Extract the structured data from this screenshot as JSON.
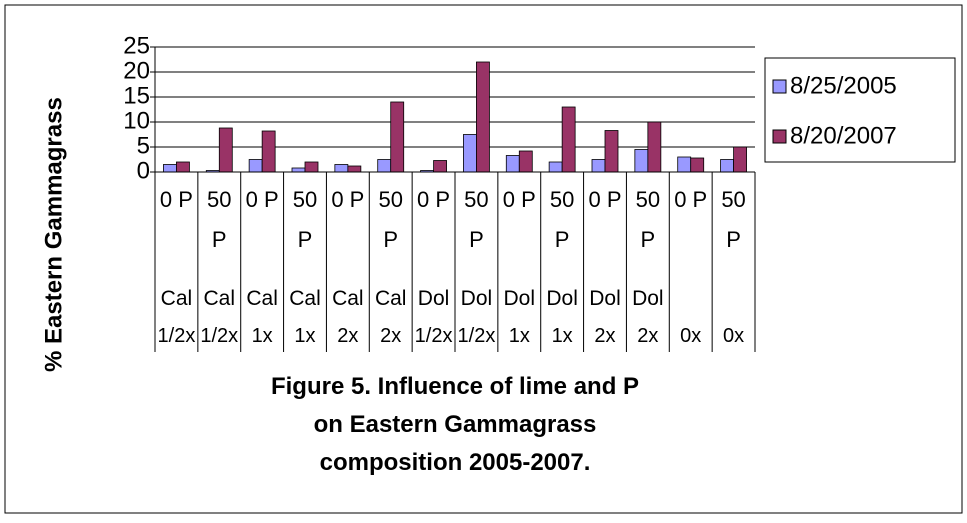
{
  "chart_data": {
    "type": "bar",
    "title": "Figure 5.  Influence of lime and P on Eastern Gammagrass composition 2005-2007.",
    "y_label": "% Eastern Gammagrass",
    "category_levels": [
      [
        "0 P",
        "50 P",
        "0 P",
        "50 P",
        "0 P",
        "50 P",
        "0 P",
        "50 P",
        "0 P",
        "50 P",
        "0 P",
        "50 P",
        "0 P",
        "50 P"
      ],
      [
        "Cal",
        "Cal",
        "Cal",
        "Cal",
        "Cal",
        "Cal",
        "Dol",
        "Dol",
        "Dol",
        "Dol",
        "Dol",
        "Dol",
        null,
        null
      ],
      [
        "1/2x",
        "1/2x",
        "1x",
        "1x",
        "2x",
        "2x",
        "1/2x",
        "1/2x",
        "1x",
        "1x",
        "2x",
        "2x",
        "0x",
        "0x"
      ]
    ],
    "series": [
      {
        "name": "8/25/2005",
        "color": "#9999ff",
        "values": [
          1.5,
          0.3,
          2.5,
          0.8,
          1.5,
          2.5,
          0.3,
          7.5,
          3.3,
          2,
          2.5,
          4.5,
          3,
          2.5
        ]
      },
      {
        "name": "8/20/2007",
        "color": "#993366",
        "values": [
          2,
          8.8,
          8.2,
          2,
          1.2,
          14,
          2.3,
          22,
          4.2,
          13,
          8.3,
          10,
          2.8,
          5
        ]
      }
    ],
    "ylim": [
      0,
      25
    ],
    "yticks": [
      0,
      5,
      10,
      15,
      20,
      25
    ],
    "grid": true,
    "legend": "right"
  }
}
